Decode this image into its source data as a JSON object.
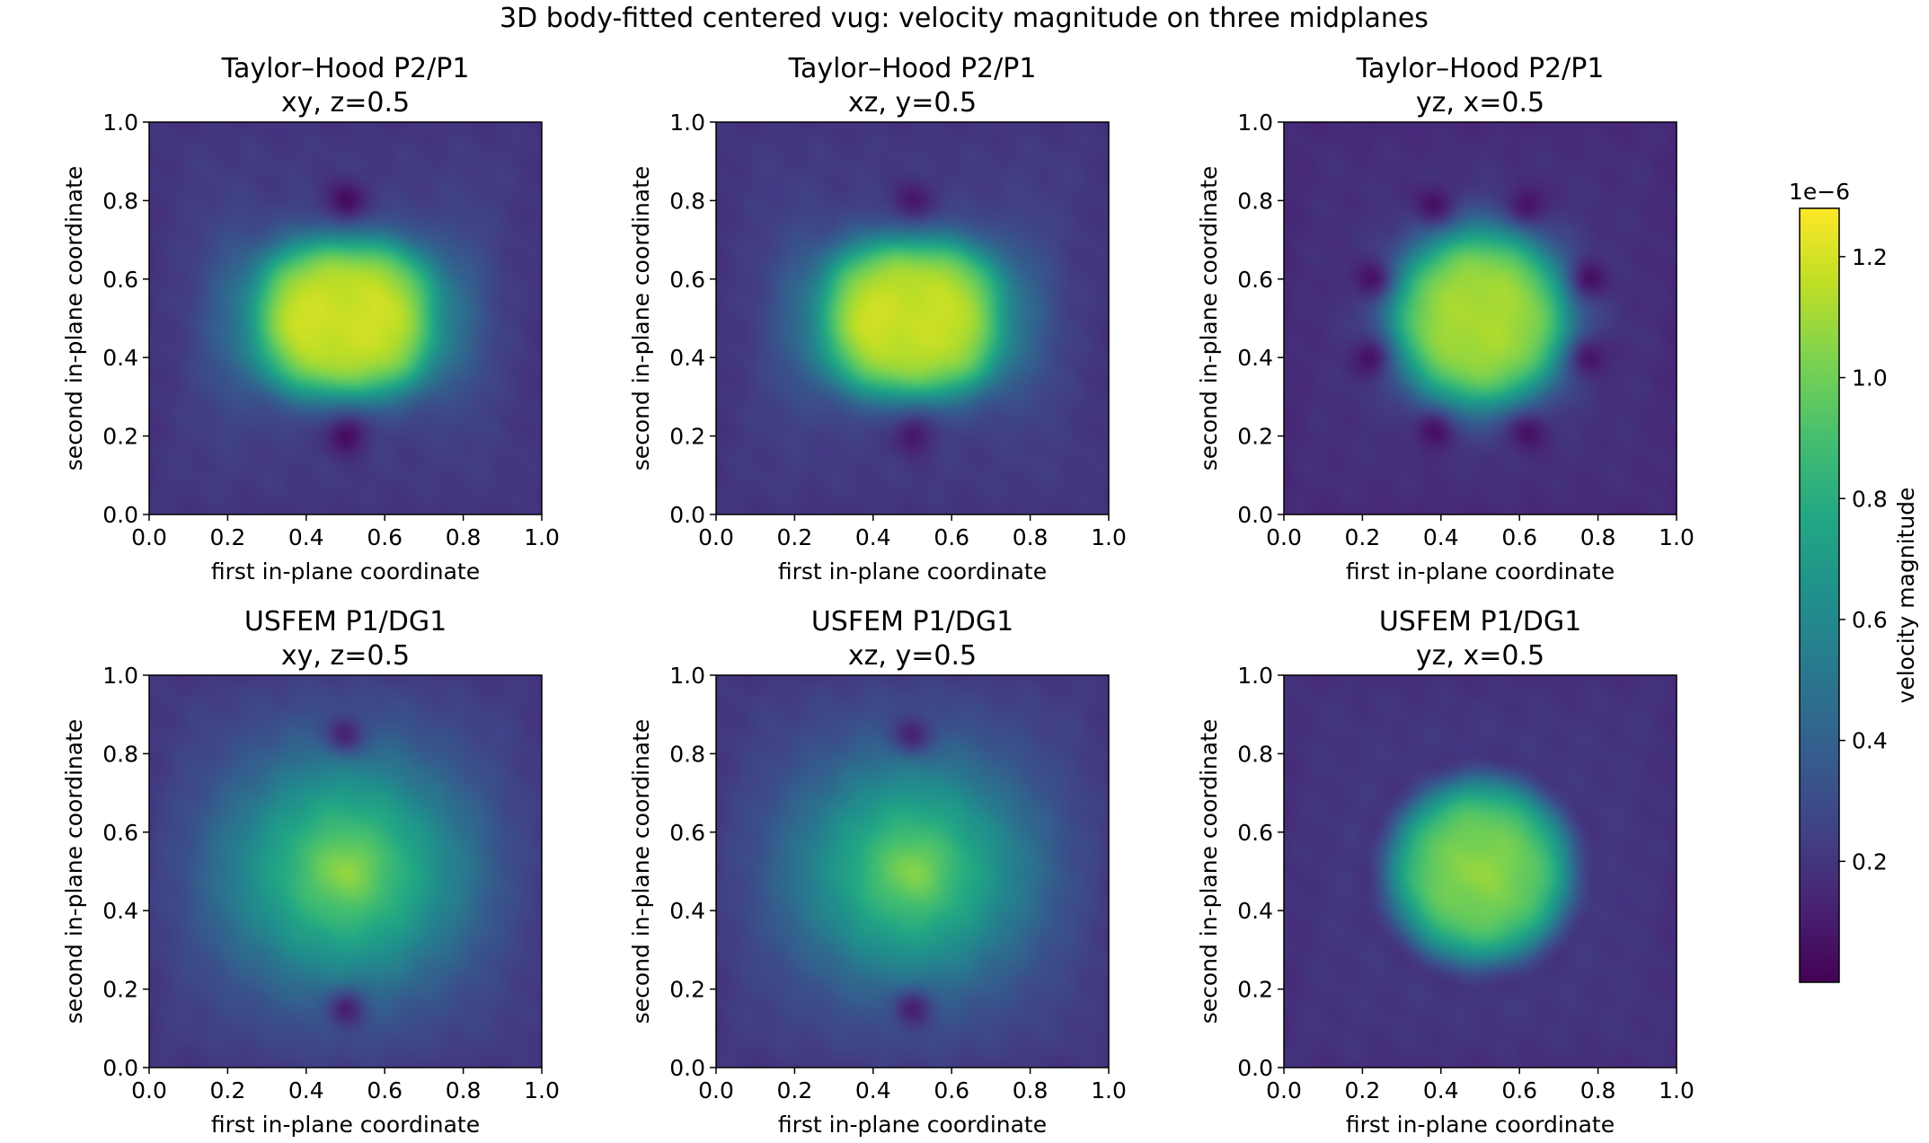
{
  "figure": {
    "suptitle": "3D body-fitted centered vug: velocity magnitude on three midplanes"
  },
  "chart_data": [
    {
      "type": "heatmap",
      "method": "Taylor–Hood P2/P1",
      "plane": "xy, z=0.5",
      "xlabel": "first in-plane coordinate",
      "ylabel": "second in-plane coordinate",
      "xlim": [
        0.0,
        1.0
      ],
      "ylim": [
        0.0,
        1.0
      ],
      "xticks": [
        "0.0",
        "0.2",
        "0.4",
        "0.6",
        "0.8",
        "1.0"
      ],
      "yticks": [
        "0.0",
        "0.2",
        "0.4",
        "0.6",
        "0.8",
        "1.0"
      ],
      "field": {
        "background": 0.22,
        "blob_center": [
          0.5,
          0.5
        ],
        "blob_radius": 0.23,
        "blob_peak": 1.18,
        "blob_shape": "barrel",
        "hotspots": [
          [
            0.35,
            0.5,
            1.25
          ],
          [
            0.62,
            0.5,
            1.22
          ]
        ],
        "dark_wedges": [
          [
            0.5,
            0.2,
            0.0
          ],
          [
            0.5,
            0.8,
            0.0
          ]
        ],
        "side_halo": 0.45
      }
    },
    {
      "type": "heatmap",
      "method": "Taylor–Hood P2/P1",
      "plane": "xz, y=0.5",
      "xlabel": "first in-plane coordinate",
      "ylabel": "second in-plane coordinate",
      "xlim": [
        0.0,
        1.0
      ],
      "ylim": [
        0.0,
        1.0
      ],
      "xticks": [
        "0.0",
        "0.2",
        "0.4",
        "0.6",
        "0.8",
        "1.0"
      ],
      "yticks": [
        "0.0",
        "0.2",
        "0.4",
        "0.6",
        "0.8",
        "1.0"
      ],
      "field": {
        "background": 0.22,
        "blob_center": [
          0.5,
          0.5
        ],
        "blob_radius": 0.23,
        "blob_peak": 1.17,
        "blob_shape": "barrel",
        "hotspots": [
          [
            0.36,
            0.5,
            1.24
          ],
          [
            0.62,
            0.5,
            1.2
          ]
        ],
        "dark_wedges": [
          [
            0.5,
            0.2,
            0.05
          ],
          [
            0.5,
            0.8,
            0.05
          ]
        ],
        "side_halo": 0.42
      }
    },
    {
      "type": "heatmap",
      "method": "Taylor–Hood P2/P1",
      "plane": "yz, x=0.5",
      "xlabel": "first in-plane coordinate",
      "ylabel": "second in-plane coordinate",
      "xlim": [
        0.0,
        1.0
      ],
      "ylim": [
        0.0,
        1.0
      ],
      "xticks": [
        "0.0",
        "0.2",
        "0.4",
        "0.6",
        "0.8",
        "1.0"
      ],
      "yticks": [
        "0.0",
        "0.2",
        "0.4",
        "0.6",
        "0.8",
        "1.0"
      ],
      "field": {
        "background": 0.18,
        "blob_center": [
          0.5,
          0.5
        ],
        "blob_radius": 0.22,
        "blob_peak": 1.12,
        "blob_shape": "round",
        "hotspots": [],
        "dark_wedges": [
          [
            0.38,
            0.21,
            0.03
          ],
          [
            0.62,
            0.21,
            0.03
          ],
          [
            0.38,
            0.79,
            0.03
          ],
          [
            0.62,
            0.79,
            0.03
          ],
          [
            0.22,
            0.4,
            0.03
          ],
          [
            0.78,
            0.4,
            0.03
          ],
          [
            0.22,
            0.6,
            0.03
          ],
          [
            0.78,
            0.6,
            0.03
          ]
        ],
        "side_halo": 0.0
      }
    },
    {
      "type": "heatmap",
      "method": "USFEM P1/DG1",
      "plane": "xy, z=0.5",
      "xlabel": "first in-plane coordinate",
      "ylabel": "second in-plane coordinate",
      "xlim": [
        0.0,
        1.0
      ],
      "ylim": [
        0.0,
        1.0
      ],
      "xticks": [
        "0.0",
        "0.2",
        "0.4",
        "0.6",
        "0.8",
        "1.0"
      ],
      "yticks": [
        "0.0",
        "0.2",
        "0.4",
        "0.6",
        "0.8",
        "1.0"
      ],
      "field": {
        "background": 0.22,
        "blob_center": [
          0.5,
          0.5
        ],
        "blob_radius": 0.24,
        "blob_peak": 1.0,
        "blob_shape": "diffuse",
        "hotspots": [
          [
            0.5,
            0.5,
            1.05
          ]
        ],
        "dark_wedges": [
          [
            0.5,
            0.15,
            0.08
          ],
          [
            0.5,
            0.85,
            0.08
          ]
        ],
        "side_halo": 0.3
      }
    },
    {
      "type": "heatmap",
      "method": "USFEM P1/DG1",
      "plane": "xz, y=0.5",
      "xlabel": "first in-plane coordinate",
      "ylabel": "second in-plane coordinate",
      "xlim": [
        0.0,
        1.0
      ],
      "ylim": [
        0.0,
        1.0
      ],
      "xticks": [
        "0.0",
        "0.2",
        "0.4",
        "0.6",
        "0.8",
        "1.0"
      ],
      "yticks": [
        "0.0",
        "0.2",
        "0.4",
        "0.6",
        "0.8",
        "1.0"
      ],
      "field": {
        "background": 0.22,
        "blob_center": [
          0.5,
          0.5
        ],
        "blob_radius": 0.23,
        "blob_peak": 0.98,
        "blob_shape": "diffuse",
        "hotspots": [
          [
            0.5,
            0.5,
            1.03
          ]
        ],
        "dark_wedges": [
          [
            0.5,
            0.15,
            0.08
          ],
          [
            0.5,
            0.85,
            0.08
          ]
        ],
        "side_halo": 0.28
      }
    },
    {
      "type": "heatmap",
      "method": "USFEM P1/DG1",
      "plane": "yz, x=0.5",
      "xlabel": "first in-plane coordinate",
      "ylabel": "second in-plane coordinate",
      "xlim": [
        0.0,
        1.0
      ],
      "ylim": [
        0.0,
        1.0
      ],
      "xticks": [
        "0.0",
        "0.2",
        "0.4",
        "0.6",
        "0.8",
        "1.0"
      ],
      "yticks": [
        "0.0",
        "0.2",
        "0.4",
        "0.6",
        "0.8",
        "1.0"
      ],
      "field": {
        "background": 0.2,
        "blob_center": [
          0.5,
          0.5
        ],
        "blob_radius": 0.22,
        "blob_peak": 1.02,
        "blob_shape": "round",
        "hotspots": [
          [
            0.5,
            0.5,
            1.08
          ]
        ],
        "dark_wedges": [],
        "side_halo": 0.0,
        "dark_ring": 0.1
      }
    }
  ],
  "colorbar": {
    "label": "velocity magnitude",
    "offset_text": "1e−6",
    "cmap": "viridis",
    "vmin": 0.0,
    "vmax": 1.28,
    "ticks": [
      {
        "value": 0.2,
        "label": "0.2"
      },
      {
        "value": 0.4,
        "label": "0.4"
      },
      {
        "value": 0.6,
        "label": "0.6"
      },
      {
        "value": 0.8,
        "label": "0.8"
      },
      {
        "value": 1.0,
        "label": "1.0"
      },
      {
        "value": 1.2,
        "label": "1.2"
      }
    ]
  }
}
